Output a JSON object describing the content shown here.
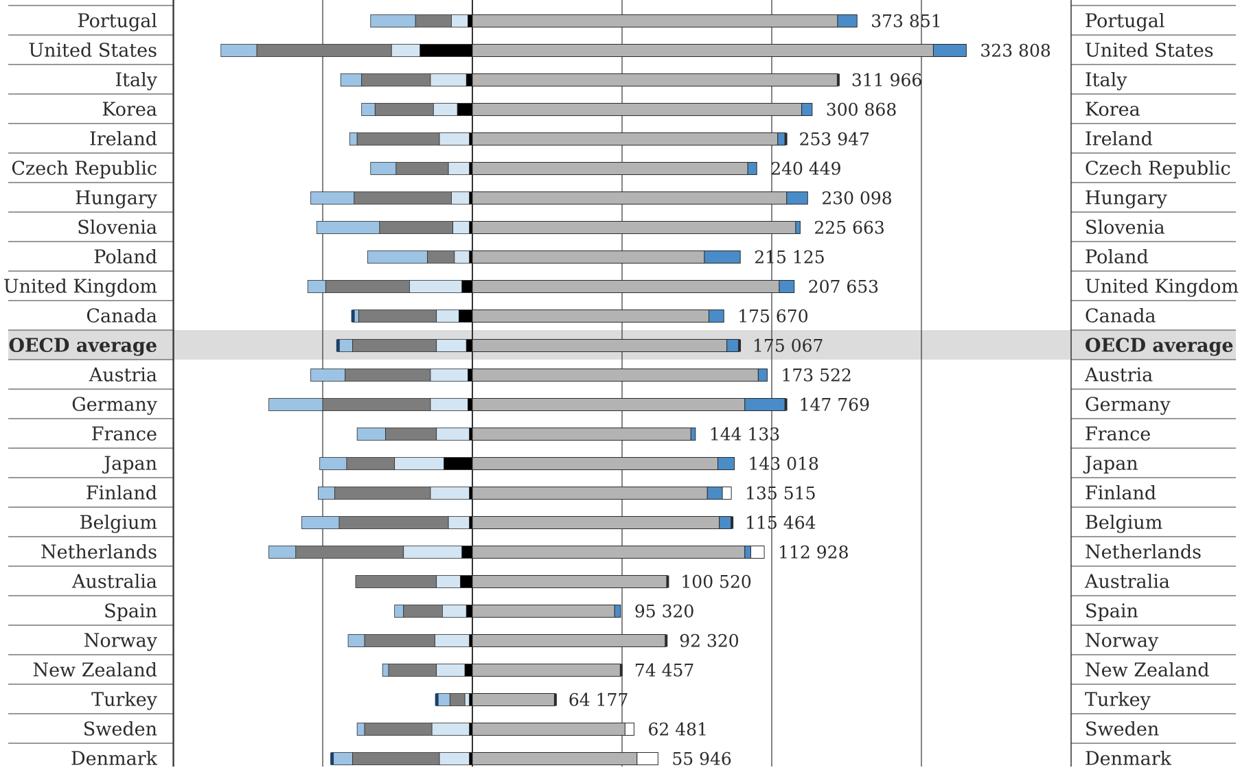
{
  "chart_data": {
    "type": "bar",
    "orientation": "horizontal",
    "diverging": true,
    "grid": true,
    "x_zero": 0,
    "x_step": 50000,
    "x_range": [
      -100000,
      200000
    ],
    "highlight_category": "OECD average",
    "segment_colors": {
      "left_light_blue": "#9cc3e4",
      "left_dark_gray": "#7d7d7d",
      "left_pale_blue": "#d3e5f3",
      "left_black": "#000000",
      "right_gray": "#b3b3b3",
      "right_blue": "#4a8cc7",
      "right_white": "#ffffff",
      "highlight_band": "#dcdcdc",
      "grid": "#333333"
    },
    "rows": [
      {
        "country": "Portugal",
        "label": "373 851",
        "left": [
          -34000,
          -19000,
          -7000,
          -1500
        ],
        "right": [
          122000,
          6500,
          0
        ]
      },
      {
        "country": "United States",
        "label": "323 808",
        "left": [
          -84000,
          -72000,
          -27000,
          -17500
        ],
        "right": [
          154000,
          11000,
          0
        ]
      },
      {
        "country": "Italy",
        "label": "311 966",
        "left": [
          -44000,
          -37000,
          -14000,
          -2000
        ],
        "right": [
          122000,
          0,
          0
        ],
        "right_edge": true
      },
      {
        "country": "Korea",
        "label": "300 868",
        "left": [
          -37000,
          -32500,
          -13000,
          -5000
        ],
        "right": [
          110000,
          3500,
          0
        ]
      },
      {
        "country": "Ireland",
        "label": "253 947",
        "left": [
          -41000,
          -38500,
          -11000,
          -1000
        ],
        "right": [
          102000,
          2500,
          0
        ],
        "right_edge": true
      },
      {
        "country": "Czech Republic",
        "label": "240 449",
        "left": [
          -34000,
          -25500,
          -8000,
          -1000
        ],
        "right": [
          92000,
          3000,
          0
        ]
      },
      {
        "country": "Hungary",
        "label": "230 098",
        "left": [
          -54000,
          -39500,
          -7000,
          -1000
        ],
        "right": [
          105000,
          7000,
          0
        ]
      },
      {
        "country": "Slovenia",
        "label": "225 663",
        "left": [
          -52000,
          -31000,
          -6500,
          -1000
        ],
        "right": [
          108000,
          1500,
          0
        ]
      },
      {
        "country": "Poland",
        "label": "215 125",
        "left": [
          -35000,
          -15000,
          -6000,
          -1000
        ],
        "right": [
          77500,
          12000,
          0
        ]
      },
      {
        "country": "United Kingdom",
        "label": "207 653",
        "left": [
          -55000,
          -49000,
          -21000,
          -3500
        ],
        "right": [
          102500,
          5000,
          0
        ]
      },
      {
        "country": "Canada",
        "label": "175 670",
        "left": [
          -40000,
          -38000,
          -12000,
          -4500
        ],
        "right": [
          79000,
          5000,
          0
        ],
        "left_edge": true
      },
      {
        "country": "OECD average",
        "label": "175 067",
        "left": [
          -45000,
          -40000,
          -12000,
          -2000
        ],
        "right": [
          85000,
          4000,
          0
        ],
        "left_edge": true,
        "right_edge": true
      },
      {
        "country": "Austria",
        "label": "173 522",
        "left": [
          -54000,
          -42500,
          -14000,
          -1500
        ],
        "right": [
          95500,
          3000,
          0
        ]
      },
      {
        "country": "Germany",
        "label": "147 769",
        "left": [
          -68000,
          -50000,
          -14000,
          -1500
        ],
        "right": [
          91000,
          13500,
          0
        ],
        "right_edge": true
      },
      {
        "country": "France",
        "label": "144 133",
        "left": [
          -38500,
          -29000,
          -12000,
          -1000
        ],
        "right": [
          73000,
          1500,
          0
        ]
      },
      {
        "country": "Japan",
        "label": "143 018",
        "left": [
          -51000,
          -42000,
          -26000,
          -9500
        ],
        "right": [
          82000,
          5500,
          0
        ]
      },
      {
        "country": "Finland",
        "label": "135 515",
        "left": [
          -51500,
          -46000,
          -14000,
          -1000
        ],
        "right": [
          78500,
          5000,
          3000
        ]
      },
      {
        "country": "Belgium",
        "label": "115 464",
        "left": [
          -57000,
          -44500,
          -8000,
          -1000
        ],
        "right": [
          82500,
          4000,
          0
        ],
        "right_edge": true
      },
      {
        "country": "Netherlands",
        "label": "112 928",
        "left": [
          -68000,
          -59000,
          -23000,
          -3500
        ],
        "right": [
          91000,
          2000,
          4500
        ]
      },
      {
        "country": "Australia",
        "label": "100 520",
        "left": [
          -39000,
          -39000,
          -12000,
          -4000
        ],
        "right": [
          65000,
          0,
          0
        ],
        "right_edge": true
      },
      {
        "country": "Spain",
        "label": "95 320",
        "left": [
          -26000,
          -23000,
          -10000,
          -2000
        ],
        "right": [
          47500,
          2000,
          0
        ]
      },
      {
        "country": "Norway",
        "label": "92 320",
        "left": [
          -41500,
          -36000,
          -12500,
          -1000
        ],
        "right": [
          64500,
          0,
          0
        ],
        "right_edge": true
      },
      {
        "country": "New Zealand",
        "label": "74 457",
        "left": [
          -30000,
          -28000,
          -12000,
          -2500
        ],
        "right": [
          49500,
          0,
          0
        ],
        "right_edge": true
      },
      {
        "country": "Turkey",
        "label": "64 177",
        "left": [
          -12000,
          -7500,
          -2500,
          -1000
        ],
        "right": [
          27500,
          0,
          0
        ],
        "left_edge": true,
        "right_edge": true
      },
      {
        "country": "Sweden",
        "label": "62 481",
        "left": [
          -38500,
          -36000,
          -13500,
          -1000
        ],
        "right": [
          51000,
          0,
          3000
        ]
      },
      {
        "country": "Denmark",
        "label": "55 946",
        "left": [
          -47000,
          -40000,
          -11000,
          -1000
        ],
        "right": [
          55000,
          0,
          7000
        ],
        "left_edge": true
      }
    ]
  }
}
